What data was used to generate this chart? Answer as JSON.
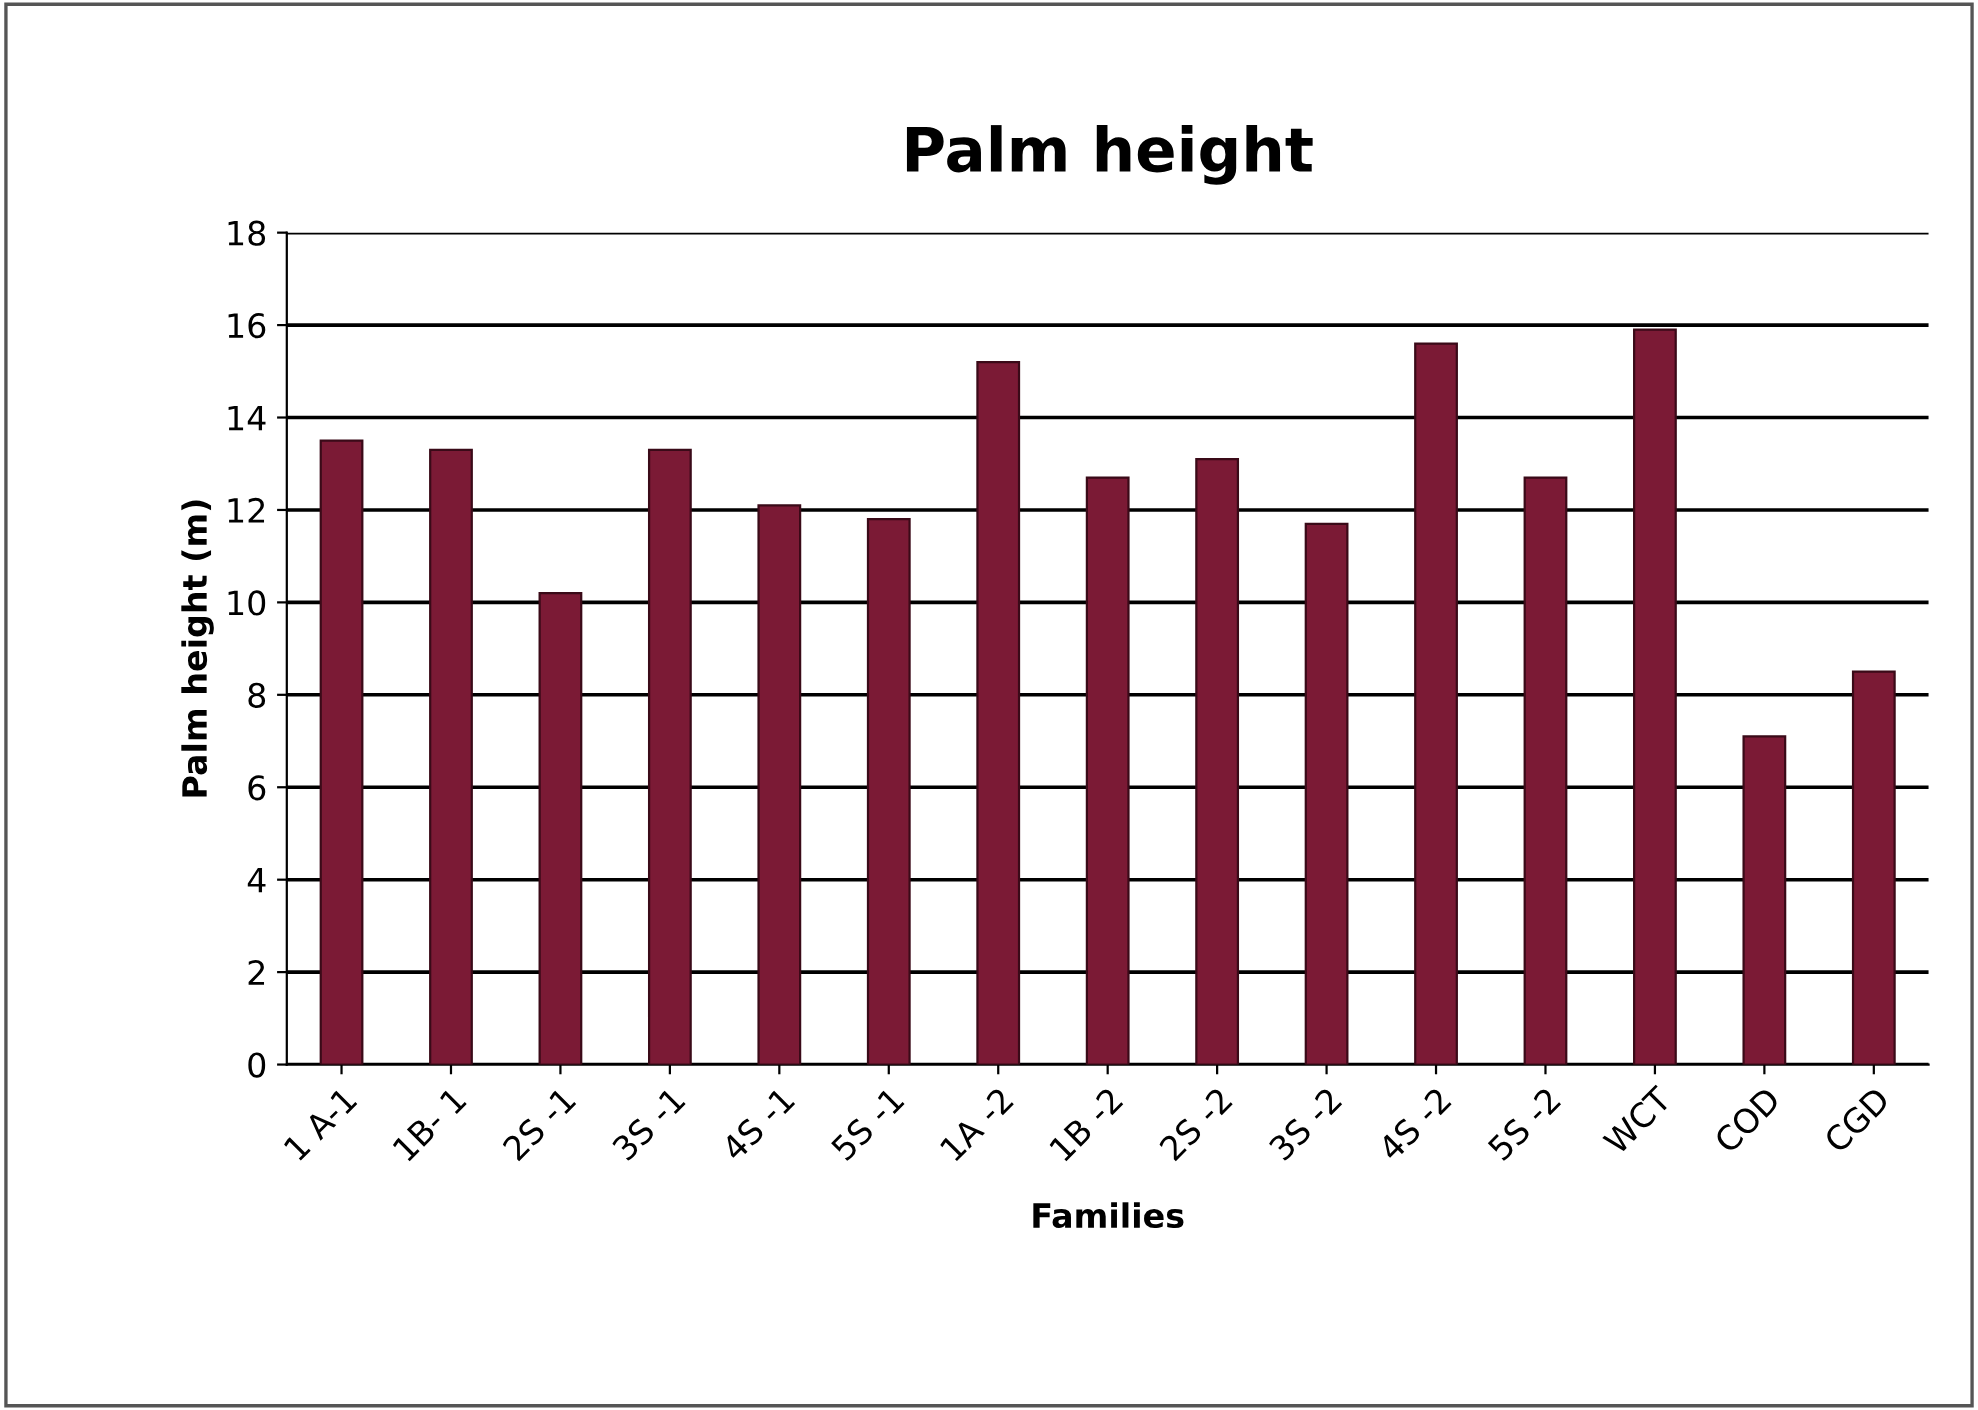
{
  "chart_data": {
    "type": "bar",
    "title": "Palm height",
    "xlabel": "Families",
    "ylabel": "Palm height (m)",
    "categories": [
      "1 A-1",
      "1B- 1",
      "2S -1",
      "3S -1",
      "4S -1",
      "5S -1",
      "1A -2",
      "1B -2",
      "2S -2",
      "3S -2",
      "4S -2",
      "5S -2",
      "WCT",
      "COD",
      "CGD"
    ],
    "values": [
      13.5,
      13.3,
      10.2,
      13.3,
      12.1,
      11.8,
      15.2,
      12.7,
      13.1,
      11.7,
      15.6,
      12.7,
      15.9,
      7.1,
      8.5
    ],
    "color": "#7b1a35",
    "ylim": [
      0,
      18
    ],
    "yticks": [
      0,
      2,
      4,
      6,
      8,
      10,
      12,
      14,
      16,
      18
    ],
    "grid": "y",
    "legend": false
  }
}
